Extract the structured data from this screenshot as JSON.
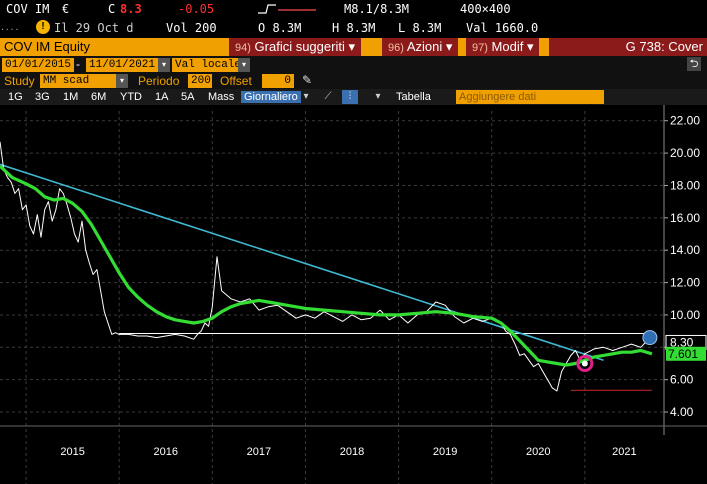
{
  "quote": {
    "ticker": "COV IM",
    "currency": "€",
    "last_label": "C",
    "last": "8.3",
    "change": "-0.05",
    "bid_ask": "M8.1/8.3M",
    "size": "400×400",
    "date_label": "Il 29 Oct d",
    "volume": "Vol 200",
    "open": "O 8.3M",
    "high": "H 8.3M",
    "low": "L 8.3M",
    "value": "Val 1660.0",
    "colors": {
      "last": "#ff3030",
      "change": "#ff3030",
      "sparkline": "#d04040"
    }
  },
  "titlebar": {
    "security": "COV IM Equity",
    "menus": [
      {
        "num": "94)",
        "label": "Grafici suggeriti",
        "arrow": "▾"
      },
      {
        "num": "96)",
        "label": "Azioni",
        "arrow": "▾"
      },
      {
        "num": "97)",
        "label": "Modif",
        "arrow": "▾"
      }
    ],
    "function": "G 738: Cover"
  },
  "daterow": {
    "start_date": "01/01/2015",
    "end_date": "11/01/2021",
    "currency_mode": "Val locale"
  },
  "studyrow": {
    "study_label": "Study",
    "study_value": "MM scad",
    "period_label": "Periodo",
    "period_value": "200",
    "offset_label": "Offset",
    "offset_value": "0"
  },
  "toolbar": {
    "ranges": [
      "1G",
      "3G",
      "1M",
      "6M",
      "YTD",
      "1A",
      "5A",
      "Mass"
    ],
    "frequency": "Giornaliero",
    "table_label": "Tabella",
    "add_data_placeholder": "Aggiungere dati"
  },
  "icons": {
    "alert": "!",
    "back": "arrow-return-icon",
    "pencil": "pencil-icon",
    "line_chart": "line-chart-icon",
    "bar_chart": "bar-chart-icon"
  },
  "chart_data": {
    "type": "line",
    "y_ticks": [
      "22.00",
      "20.00",
      "18.00",
      "16.00",
      "14.00",
      "12.00",
      "10.00",
      "8.00",
      "6.00",
      "4.00"
    ],
    "ylim": [
      3.2,
      22.6
    ],
    "x_ticks": [
      "2015",
      "2016",
      "2017",
      "2018",
      "2019",
      "2020",
      "2021"
    ],
    "x_range": [
      2014.72,
      2021.85
    ],
    "series": [
      {
        "color": "#ffffff",
        "x": [
          2014.72,
          2014.76,
          2014.8,
          2014.84,
          2014.88,
          2014.92,
          2014.96,
          2015.0,
          2015.04,
          2015.08,
          2015.12,
          2015.16,
          2015.2,
          2015.24,
          2015.28,
          2015.32,
          2015.36,
          2015.4,
          2015.44,
          2015.48,
          2015.52,
          2015.56,
          2015.6,
          2015.64,
          2015.68,
          2015.72,
          2015.76,
          2015.8,
          2015.84,
          2015.88,
          2015.92,
          2015.96,
          2016.0,
          2016.1,
          2016.2,
          2016.3,
          2016.4,
          2016.5,
          2016.6,
          2016.7,
          2016.8,
          2016.84,
          2016.88,
          2016.92,
          2016.96,
          2017.0,
          2017.05,
          2017.1,
          2017.2,
          2017.3,
          2017.4,
          2017.5,
          2017.6,
          2017.7,
          2017.8,
          2017.9,
          2018.0,
          2018.1,
          2018.2,
          2018.3,
          2018.4,
          2018.5,
          2018.6,
          2018.7,
          2018.8,
          2018.9,
          2019.0,
          2019.1,
          2019.2,
          2019.3,
          2019.4,
          2019.5,
          2019.6,
          2019.7,
          2019.8,
          2019.9,
          2020.0,
          2020.1,
          2020.15,
          2020.2,
          2020.25,
          2020.3,
          2020.35,
          2020.4,
          2020.45,
          2020.5,
          2020.55,
          2020.6,
          2020.65,
          2020.7,
          2020.75,
          2020.8,
          2020.85,
          2020.9,
          2020.95,
          2021.0,
          2021.1,
          2021.2,
          2021.3,
          2021.4,
          2021.5,
          2021.6,
          2021.65,
          2021.72
        ],
        "y": [
          20.7,
          19.0,
          18.5,
          18.2,
          17.5,
          17.8,
          16.5,
          16.8,
          15.5,
          15.0,
          16.2,
          14.8,
          16.5,
          17.0,
          15.8,
          16.5,
          17.8,
          17.5,
          16.8,
          16.0,
          15.0,
          14.5,
          15.8,
          14.0,
          13.2,
          12.5,
          12.8,
          11.5,
          10.2,
          9.5,
          8.8,
          8.9,
          8.8,
          8.8,
          8.7,
          8.7,
          8.6,
          8.7,
          8.8,
          8.7,
          8.5,
          8.8,
          9.0,
          9.5,
          9.3,
          10.5,
          13.6,
          11.5,
          11.0,
          10.8,
          11.0,
          10.3,
          10.5,
          10.6,
          10.2,
          9.8,
          10.0,
          9.8,
          10.2,
          9.9,
          9.6,
          10.0,
          9.7,
          9.8,
          10.3,
          9.7,
          10.0,
          9.5,
          10.0,
          10.2,
          10.8,
          10.6,
          9.9,
          9.5,
          9.8,
          9.6,
          9.8,
          9.5,
          9.0,
          8.8,
          8.2,
          7.5,
          7.6,
          7.2,
          6.8,
          7.0,
          6.5,
          6.0,
          5.5,
          5.3,
          6.5,
          7.0,
          7.5,
          7.8,
          7.2,
          7.6,
          7.9,
          8.0,
          7.8,
          8.0,
          8.2,
          8.0,
          8.3,
          8.3
        ]
      },
      {
        "color": "#33dd33",
        "x": [
          2014.72,
          2014.85,
          2015.0,
          2015.1,
          2015.2,
          2015.3,
          2015.4,
          2015.5,
          2015.6,
          2015.7,
          2015.8,
          2015.9,
          2016.0,
          2016.1,
          2016.2,
          2016.3,
          2016.4,
          2016.5,
          2016.6,
          2016.7,
          2016.8,
          2016.9,
          2017.0,
          2017.1,
          2017.2,
          2017.3,
          2017.4,
          2017.5,
          2017.6,
          2017.7,
          2017.8,
          2017.9,
          2018.0,
          2018.2,
          2018.4,
          2018.6,
          2018.8,
          2019.0,
          2019.2,
          2019.4,
          2019.6,
          2019.8,
          2020.0,
          2020.1,
          2020.2,
          2020.3,
          2020.4,
          2020.5,
          2020.6,
          2020.7,
          2020.8,
          2020.9,
          2021.0,
          2021.1,
          2021.2,
          2021.3,
          2021.4,
          2021.5,
          2021.6,
          2021.72
        ],
        "y": [
          19.2,
          18.5,
          18.1,
          17.8,
          17.3,
          17.1,
          17.2,
          16.9,
          16.4,
          15.6,
          14.6,
          13.6,
          12.6,
          11.7,
          11.1,
          10.6,
          10.2,
          9.9,
          9.7,
          9.6,
          9.5,
          9.6,
          9.8,
          10.2,
          10.5,
          10.7,
          10.8,
          10.9,
          10.8,
          10.7,
          10.6,
          10.5,
          10.4,
          10.3,
          10.2,
          10.1,
          10.0,
          10.0,
          10.1,
          10.2,
          10.1,
          9.9,
          9.8,
          9.5,
          9.0,
          8.4,
          7.8,
          7.2,
          7.1,
          7.0,
          6.9,
          7.0,
          7.2,
          7.4,
          7.5,
          7.6,
          7.7,
          7.7,
          7.8,
          7.6
        ]
      }
    ],
    "trendline": {
      "color": "#3fb8d0",
      "x": [
        2014.72,
        2021.2
      ],
      "y": [
        19.3,
        7.2
      ]
    },
    "support_line": {
      "color": "#ffffff",
      "x": [
        2016.0,
        2021.72
      ],
      "y": [
        8.85,
        8.85
      ]
    },
    "low_line": {
      "color": "#cc2a2a",
      "x": [
        2020.85,
        2021.72
      ],
      "y": [
        5.35,
        5.35
      ]
    },
    "last_price_label": "8.30",
    "ma_label": "7.601",
    "colors": {
      "last_price_bg": "#000000",
      "ma_bg": "#33dd33",
      "marker_ring": "#e0208a",
      "alert_circle": "#2e6fb5"
    }
  }
}
